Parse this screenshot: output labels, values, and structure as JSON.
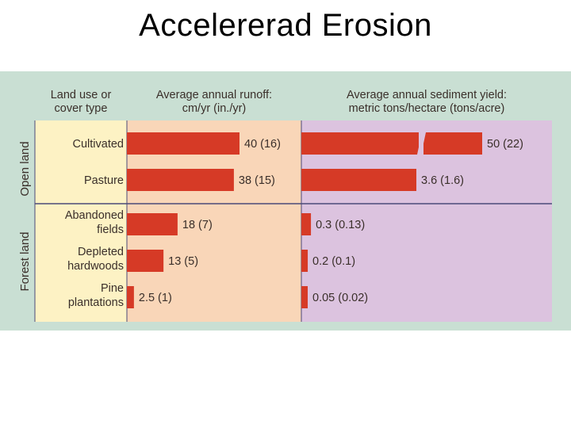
{
  "title": "Accelererad Erosion",
  "headers": {
    "land_use": [
      "Land use or",
      "cover type"
    ],
    "runoff": [
      "Average annual runoff:",
      "cm/yr (in./yr)"
    ],
    "sediment": [
      "Average annual sediment yield:",
      "metric tons/hectare (tons/acre)"
    ]
  },
  "groups": [
    {
      "label": "Open land",
      "rows": [
        0,
        1
      ]
    },
    {
      "label": "Forest land",
      "rows": [
        2,
        3,
        4
      ]
    }
  ],
  "colors": {
    "background": "#c9dfd3",
    "land_panel": "#fdf2c4",
    "runoff_panel": "#f9d6b8",
    "sediment_panel": "#dcc3df",
    "bar": "#d63a26",
    "text": "#3a2f2a",
    "divider": "#4a4a78"
  },
  "chart_data": [
    {
      "type": "bar",
      "orientation": "horizontal",
      "title": "Average annual runoff:",
      "xlabel": "cm/yr (in./yr)",
      "categories": [
        "Cultivated",
        "Pasture",
        "Abandoned fields",
        "Depleted hardwoods",
        "Pine plantations"
      ],
      "values": [
        40,
        38,
        18,
        13,
        2.5
      ],
      "value_labels": [
        "40 (16)",
        "38 (15)",
        "18 (7)",
        "13 (5)",
        "2.5 (1)"
      ],
      "xlim": [
        0,
        40
      ]
    },
    {
      "type": "bar",
      "orientation": "horizontal",
      "title": "Average annual sediment yield:",
      "xlabel": "metric tons/hectare (tons/acre)",
      "categories": [
        "Cultivated",
        "Pasture",
        "Abandoned fields",
        "Depleted hardwoods",
        "Pine plantations"
      ],
      "values": [
        50,
        3.6,
        0.3,
        0.2,
        0.05
      ],
      "value_labels": [
        "50 (22)",
        "3.6 (1.6)",
        "0.3 (0.13)",
        "0.2 (0.1)",
        "0.05 (0.02)"
      ],
      "broken_axis_bars": [
        0
      ]
    }
  ],
  "row_labels": [
    [
      "Cultivated"
    ],
    [
      "Pasture"
    ],
    [
      "Abandoned",
      "fields"
    ],
    [
      "Depleted",
      "hardwoods"
    ],
    [
      "Pine",
      "plantations"
    ]
  ]
}
